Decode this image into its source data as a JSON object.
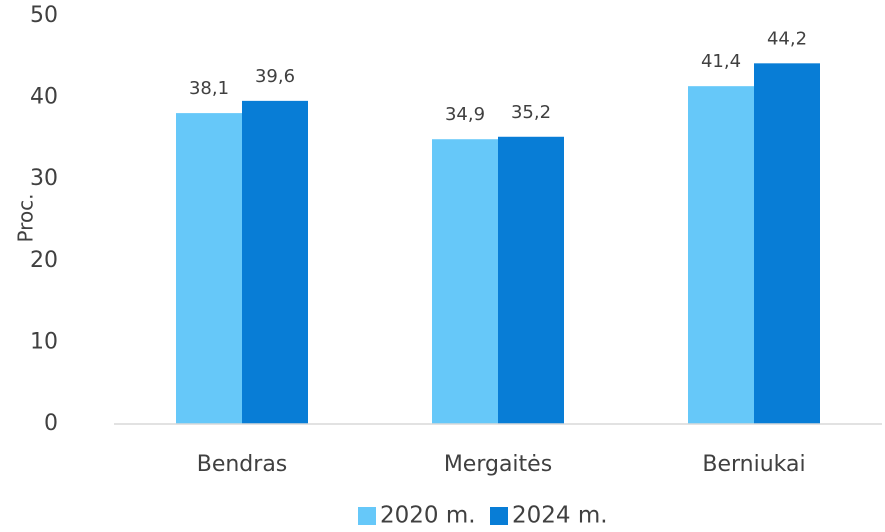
{
  "chart_data": {
    "type": "bar",
    "ylabel": "Proc.",
    "categories": [
      "Bendras",
      "Mergaitės",
      "Berniukai"
    ],
    "series": [
      {
        "name": "2020 m.",
        "color": "#66c8f9",
        "values": [
          38.1,
          34.9,
          41.4
        ],
        "value_labels": [
          "38,1",
          "34,9",
          "41,4"
        ]
      },
      {
        "name": "2024 m.",
        "color": "#087dd6",
        "values": [
          39.6,
          35.2,
          44.2
        ],
        "value_labels": [
          "39,6",
          "35,2",
          "44,2"
        ]
      }
    ],
    "ylim": [
      0,
      50
    ],
    "yticks": [
      0,
      10,
      20,
      30,
      40,
      50
    ],
    "grid": false,
    "legend": "bottom"
  }
}
